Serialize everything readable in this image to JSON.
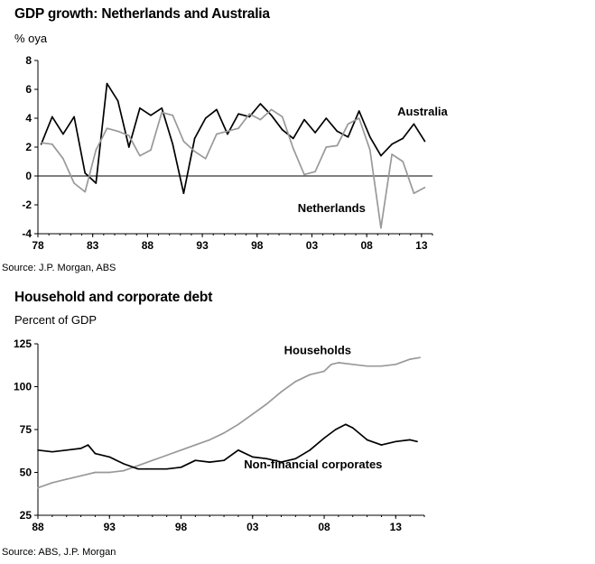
{
  "chart_data": [
    {
      "type": "line",
      "title": "GDP growth: Netherlands and Australia",
      "subtitle": "% oya",
      "source": "Source: J.P. Morgan, ABS",
      "xlim": [
        1978,
        2014
      ],
      "ylim": [
        -4,
        8
      ],
      "yticks": [
        -4,
        -2,
        0,
        2,
        4,
        6,
        8
      ],
      "xticks": [
        1978,
        1983,
        1988,
        1993,
        1998,
        2003,
        2008,
        2013
      ],
      "xtick_labels": [
        "78",
        "83",
        "88",
        "93",
        "98",
        "03",
        "08",
        "13"
      ],
      "zero_line": true,
      "series": [
        {
          "name": "Australia",
          "label_pos": [
            2010.8,
            4.2
          ],
          "color": "#000000",
          "x": [
            1978.3,
            1979.3,
            1980.3,
            1981.3,
            1982.3,
            1983.3,
            1984.3,
            1985.3,
            1986.3,
            1987.3,
            1988.3,
            1989.3,
            1990.3,
            1991.3,
            1992.3,
            1993.3,
            1994.3,
            1995.3,
            1996.3,
            1997.3,
            1998.3,
            1999.3,
            2000.3,
            2001.3,
            2002.3,
            2003.3,
            2004.3,
            2005.3,
            2006.3,
            2007.3,
            2008.3,
            2009.3,
            2010.3,
            2011.3,
            2012.3,
            2013.3,
            2014.3
          ],
          "y": [
            2.2,
            4.1,
            2.9,
            4.1,
            0.2,
            -0.5,
            6.4,
            5.2,
            2.0,
            4.7,
            4.2,
            4.7,
            2.2,
            -1.2,
            2.6,
            4.0,
            4.6,
            2.9,
            4.3,
            4.1,
            5.0,
            4.2,
            3.2,
            2.6,
            3.9,
            3.0,
            4.0,
            3.1,
            2.7,
            4.5,
            2.7,
            1.4,
            2.2,
            2.6,
            3.6,
            2.4,
            null
          ]
        },
        {
          "name": "Netherlands",
          "label_pos": [
            2001.7,
            -2.5
          ],
          "color": "#999999",
          "x": [
            1978.3,
            1979.3,
            1980.3,
            1981.3,
            1982.3,
            1983.3,
            1984.3,
            1985.3,
            1986.3,
            1987.3,
            1988.3,
            1989.3,
            1990.3,
            1991.3,
            1992.3,
            1993.3,
            1994.3,
            1995.3,
            1996.3,
            1997.3,
            1998.3,
            1999.3,
            2000.3,
            2001.3,
            2002.3,
            2003.3,
            2004.3,
            2005.3,
            2006.3,
            2007.3,
            2008.3,
            2009.3,
            2010.3,
            2011.3,
            2012.3,
            2013.3,
            2014.3
          ],
          "y": [
            2.3,
            2.2,
            1.2,
            -0.5,
            -1.1,
            1.8,
            3.3,
            3.1,
            2.8,
            1.4,
            1.8,
            4.4,
            4.2,
            2.4,
            1.7,
            1.2,
            2.9,
            3.1,
            3.3,
            4.3,
            3.9,
            4.6,
            4.1,
            1.9,
            0.1,
            0.3,
            2.0,
            2.1,
            3.6,
            4.0,
            1.8,
            -3.6,
            1.5,
            1.0,
            -1.2,
            -0.8,
            null
          ]
        }
      ]
    },
    {
      "type": "line",
      "title": "Household and corporate debt",
      "subtitle": "Percent of GDP",
      "source": "Source: ABS, J.P. Morgan",
      "xlim": [
        1988,
        2015
      ],
      "ylim": [
        25,
        125
      ],
      "yticks": [
        25,
        50,
        75,
        100,
        125
      ],
      "xticks": [
        1988,
        1993,
        1998,
        2003,
        2008,
        2013
      ],
      "xtick_labels": [
        "88",
        "93",
        "98",
        "03",
        "08",
        "13"
      ],
      "series": [
        {
          "name": "Households",
          "label_pos": [
            2005.2,
            119
          ],
          "color": "#999999",
          "x": [
            1988.0,
            1989.0,
            1990.0,
            1991.0,
            1992.0,
            1993.0,
            1994.0,
            1995.0,
            1996.0,
            1997.0,
            1998.0,
            1999.0,
            2000.0,
            2001.0,
            2002.0,
            2003.0,
            2004.0,
            2005.0,
            2006.0,
            2007.0,
            2008.0,
            2008.5,
            2009.0,
            2010.0,
            2011.0,
            2012.0,
            2013.0,
            2014.0,
            2014.7
          ],
          "y": [
            41,
            44,
            46,
            48,
            50,
            50,
            51,
            54,
            57,
            60,
            63,
            66,
            69,
            73,
            78,
            84,
            90,
            97,
            103,
            107,
            109,
            113,
            114,
            113,
            112,
            112,
            113,
            116,
            117
          ]
        },
        {
          "name": "Non-financial corporates",
          "label_pos": [
            2002.4,
            52.5
          ],
          "color": "#000000",
          "x": [
            1988.0,
            1989.0,
            1990.0,
            1991.0,
            1991.5,
            1992.0,
            1993.0,
            1994.0,
            1995.0,
            1996.0,
            1997.0,
            1998.0,
            1999.0,
            2000.0,
            2001.0,
            2002.0,
            2003.0,
            2004.0,
            2005.0,
            2006.0,
            2007.0,
            2008.0,
            2008.8,
            2009.5,
            2010.0,
            2011.0,
            2012.0,
            2013.0,
            2014.0,
            2014.5
          ],
          "y": [
            63,
            62,
            63,
            64,
            66,
            61,
            59,
            55,
            52,
            52,
            52,
            53,
            57,
            56,
            57,
            63,
            59,
            58,
            56,
            58,
            63,
            70,
            75,
            78,
            76,
            69,
            66,
            68,
            69,
            68
          ]
        }
      ]
    }
  ]
}
